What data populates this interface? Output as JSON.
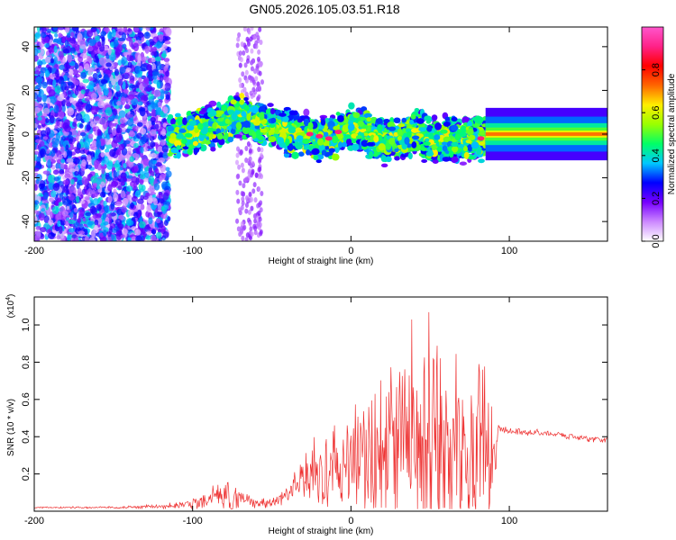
{
  "title": "GN05.2026.105.03.51.R18",
  "chart_data": [
    {
      "type": "heatmap",
      "xlabel": "Height of straight line (km)",
      "ylabel": "Frequency (Hz)",
      "xlim": [
        -200,
        162
      ],
      "ylim": [
        -49,
        49
      ],
      "xticks": [
        -200,
        -100,
        0,
        100
      ],
      "yticks": [
        -40,
        -20,
        0,
        20,
        40
      ],
      "xtick_labels": [
        "-200",
        "-100",
        "0",
        "100"
      ],
      "ytick_labels": [
        "-40",
        "-20",
        "0",
        "20",
        "40"
      ],
      "colorbar": {
        "label": "Normalized spectral amplitude",
        "range": [
          0,
          1
        ],
        "ticks": [
          0,
          0.2,
          0.4,
          0.6,
          0.8
        ],
        "tick_labels": [
          "0.0",
          "0.2",
          "0.4",
          "0.6",
          "0.8"
        ],
        "colors": [
          "#ffffff",
          "#cc88ff",
          "#7700ff",
          "#0000ff",
          "#00c8ff",
          "#00ff66",
          "#99ff00",
          "#ffee00",
          "#ff6600",
          "#ff0000",
          "#ff2288",
          "#ff55cc"
        ]
      },
      "ridge": {
        "x": [
          -200,
          -180,
          -160,
          -140,
          -120,
          -110,
          -100,
          -90,
          -80,
          -70,
          -60,
          -50,
          -40,
          -30,
          -20,
          -10,
          0,
          10,
          20,
          30,
          40,
          50,
          60,
          70,
          80,
          90,
          100,
          120,
          140,
          162
        ],
        "y": [
          -4,
          -3,
          -5,
          -3,
          -2,
          -1,
          1,
          3,
          5,
          8,
          6,
          4,
          1,
          0,
          -2,
          -1,
          3,
          1,
          -4,
          -2,
          1,
          -3,
          -2,
          -3,
          -2,
          -2,
          -1,
          -1,
          0,
          0
        ]
      }
    },
    {
      "type": "line",
      "xlabel": "Height of straight line (km)",
      "ylabel": "SNR (10 * v/v)",
      "y_multiplier_label": "(x10",
      "y_multiplier_exp": "4",
      "y_multiplier_close": ")",
      "xlim": [
        -200,
        162
      ],
      "ylim": [
        0,
        1.15
      ],
      "xticks": [
        -200,
        -100,
        0,
        100
      ],
      "yticks": [
        0.2,
        0.4,
        0.6,
        0.8,
        1.0
      ],
      "xtick_labels": [
        "-200",
        "-100",
        "0",
        "100"
      ],
      "ytick_labels": [
        "0.2",
        "0.4",
        "0.6",
        "0.8",
        "1.0"
      ],
      "color": "#ee3333",
      "envelope": {
        "x": [
          -200,
          -150,
          -120,
          -100,
          -90,
          -80,
          -75,
          -70,
          -60,
          -50,
          -40,
          -35,
          -30,
          -25,
          -20,
          -15,
          -10,
          -5,
          0,
          5,
          10,
          20,
          30,
          40,
          45,
          50,
          55,
          60,
          70,
          80,
          85,
          90,
          93,
          95,
          100,
          120,
          140,
          162
        ],
        "base": [
          0.02,
          0.02,
          0.025,
          0.04,
          0.06,
          0.08,
          0.08,
          0.07,
          0.05,
          0.04,
          0.09,
          0.13,
          0.16,
          0.18,
          0.2,
          0.22,
          0.24,
          0.26,
          0.28,
          0.3,
          0.32,
          0.36,
          0.38,
          0.4,
          0.42,
          0.4,
          0.42,
          0.38,
          0.36,
          0.34,
          0.32,
          0.3,
          0.45,
          0.44,
          0.43,
          0.42,
          0.4,
          0.38
        ],
        "spread": [
          0.005,
          0.008,
          0.012,
          0.04,
          0.07,
          0.1,
          0.12,
          0.1,
          0.04,
          0.03,
          0.05,
          0.1,
          0.18,
          0.22,
          0.3,
          0.32,
          0.34,
          0.36,
          0.4,
          0.45,
          0.5,
          0.55,
          0.6,
          0.65,
          0.75,
          0.85,
          0.8,
          0.75,
          0.65,
          0.6,
          0.5,
          0.45,
          0.02,
          0.02,
          0.02,
          0.02,
          0.02,
          0.02
        ]
      }
    }
  ]
}
